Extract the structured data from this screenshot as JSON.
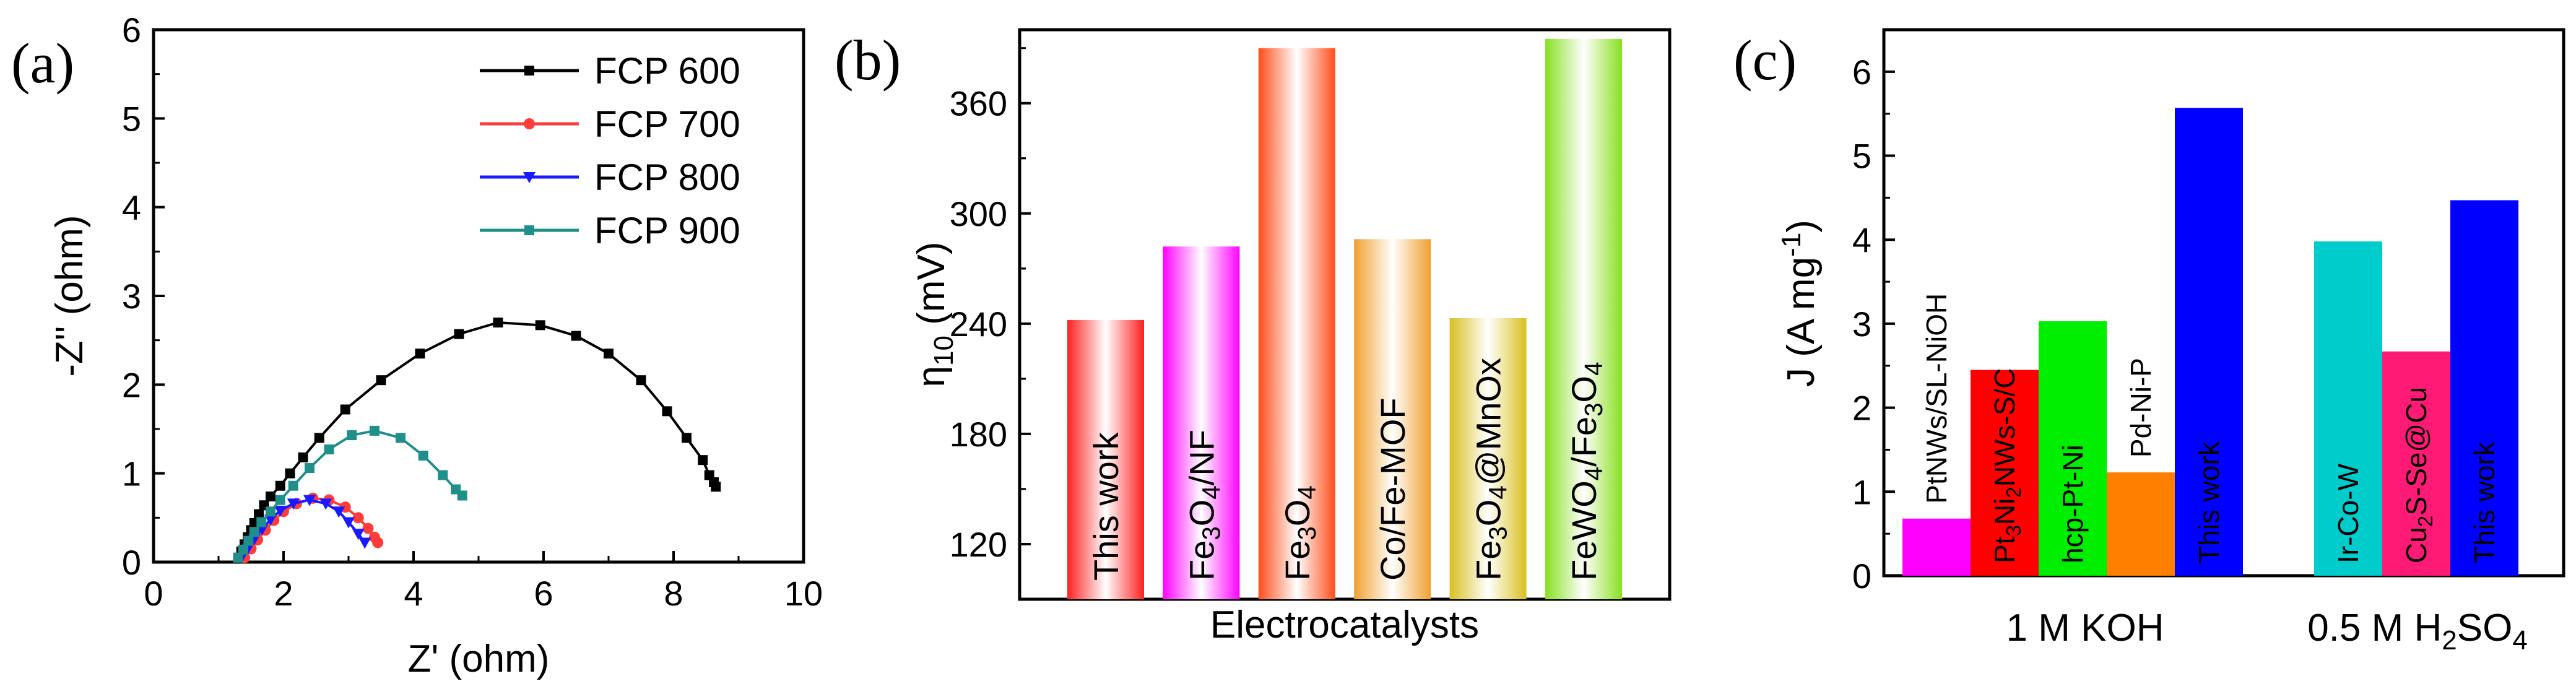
{
  "figure_title": "",
  "colors": {
    "axis": "#000000",
    "fcp600": "#000000",
    "fcp700": "#ff3b3b",
    "fcp800": "#1a1aff",
    "fcp900": "#1f8f8a",
    "pink_magenta": "#ff00ff",
    "red": "#ff0000",
    "green": "#00ee00",
    "orange": "#ff8000",
    "blue": "#0000ff",
    "cyan": "#00cccc",
    "rose": "#ff1a75"
  },
  "chart_data": [
    {
      "panel_label": "(a)",
      "type": "scatter",
      "xlabel": "Z' (ohm)",
      "ylabel": "-Z'' (ohm)",
      "xlim": [
        0,
        10
      ],
      "ylim": [
        0,
        6
      ],
      "xticks": [
        0,
        2,
        4,
        6,
        8,
        10
      ],
      "yticks": [
        0,
        1,
        2,
        3,
        4,
        5,
        6
      ],
      "legend_position": "top-right",
      "series": [
        {
          "name": "FCP 600",
          "color": "#000000",
          "marker": "square",
          "x": [
            1.3,
            1.35,
            1.4,
            1.45,
            1.5,
            1.55,
            1.62,
            1.7,
            1.8,
            1.95,
            2.1,
            2.3,
            2.55,
            2.95,
            3.5,
            4.1,
            4.7,
            5.3,
            5.95,
            6.5,
            7.0,
            7.5,
            7.9,
            8.2,
            8.45,
            8.55,
            8.62,
            8.65
          ],
          "y": [
            0.05,
            0.12,
            0.2,
            0.28,
            0.36,
            0.44,
            0.54,
            0.64,
            0.74,
            0.86,
            1.0,
            1.18,
            1.4,
            1.72,
            2.05,
            2.35,
            2.57,
            2.7,
            2.67,
            2.55,
            2.35,
            2.05,
            1.7,
            1.4,
            1.15,
            0.98,
            0.9,
            0.85
          ]
        },
        {
          "name": "FCP 700",
          "color": "#ff3b3b",
          "marker": "circle",
          "x": [
            1.4,
            1.5,
            1.6,
            1.72,
            1.85,
            2.0,
            2.2,
            2.45,
            2.7,
            2.95,
            3.15,
            3.3,
            3.4,
            3.45
          ],
          "y": [
            0.05,
            0.15,
            0.25,
            0.36,
            0.47,
            0.57,
            0.66,
            0.72,
            0.7,
            0.62,
            0.5,
            0.38,
            0.28,
            0.22
          ]
        },
        {
          "name": "FCP 800",
          "color": "#1a1aff",
          "marker": "triangle-down",
          "x": [
            1.35,
            1.45,
            1.55,
            1.67,
            1.8,
            1.95,
            2.15,
            2.4,
            2.65,
            2.85,
            3.0,
            3.15,
            3.25
          ],
          "y": [
            0.05,
            0.15,
            0.26,
            0.37,
            0.48,
            0.58,
            0.66,
            0.7,
            0.66,
            0.57,
            0.45,
            0.32,
            0.22
          ]
        },
        {
          "name": "FCP 900",
          "color": "#1f8f8a",
          "marker": "square",
          "x": [
            1.3,
            1.38,
            1.46,
            1.55,
            1.66,
            1.8,
            1.95,
            2.15,
            2.4,
            2.7,
            3.05,
            3.4,
            3.8,
            4.15,
            4.45,
            4.65,
            4.75
          ],
          "y": [
            0.05,
            0.14,
            0.24,
            0.34,
            0.45,
            0.57,
            0.7,
            0.86,
            1.06,
            1.27,
            1.43,
            1.48,
            1.4,
            1.2,
            0.98,
            0.82,
            0.75
          ]
        }
      ]
    },
    {
      "panel_label": "(b)",
      "type": "bar",
      "xlabel": "Electrocatalysts",
      "ylabel_main": "η",
      "ylabel_sub": "10",
      "ylabel_unit": " (mV)",
      "ylim": [
        90,
        400
      ],
      "yticks": [
        120,
        180,
        240,
        300,
        360
      ],
      "bars": [
        {
          "label": "This work",
          "value": 242,
          "color": "#ff2020"
        },
        {
          "label": "Fe3O4/NF",
          "value": 282,
          "color": "#ff00ff"
        },
        {
          "label": "Fe3O4",
          "value": 390,
          "color": "#ff4d1a"
        },
        {
          "label": "Co/Fe-MOF",
          "value": 286,
          "color": "#f0a030"
        },
        {
          "label": "Fe3O4@MnOx",
          "value": 243,
          "color": "#d9c020"
        },
        {
          "label": "FeWO4/Fe3O4",
          "value": 395,
          "color": "#88e020"
        }
      ]
    },
    {
      "panel_label": "(c)",
      "type": "bar",
      "ylabel_main": "J (A mg",
      "ylabel_sup": "-1",
      "ylabel_tail": ")",
      "ylim": [
        0,
        6.5
      ],
      "yticks": [
        0,
        1,
        2,
        3,
        4,
        5,
        6
      ],
      "groups": [
        {
          "label": "1 M KOH",
          "label_main": "1 M KOH",
          "label_sub": "",
          "label_tail": "",
          "bars": [
            {
              "label": "PtNWs/SL-NiOH",
              "value": 0.68,
              "color": "#ff00ff"
            },
            {
              "label": "Pt3Ni2NWs-S/C",
              "value": 2.45,
              "color": "#ff0000"
            },
            {
              "label": "hcp-Pt-Ni",
              "value": 3.03,
              "color": "#00ee00"
            },
            {
              "label": "Pd-Ni-P",
              "value": 1.23,
              "color": "#ff8000"
            },
            {
              "label": "This work",
              "value": 5.57,
              "color": "#0000ff"
            }
          ]
        },
        {
          "label": "0.5 M H2SO4",
          "label_main": "0.5 M H",
          "label_sub": "2",
          "label_tail": "SO",
          "label_sub2": "4",
          "bars": [
            {
              "label": "Ir-Co-W",
              "value": 3.98,
              "color": "#00cccc"
            },
            {
              "label": "Cu2S-Se@Cu",
              "value": 2.67,
              "color": "#ff1a75"
            },
            {
              "label": "This work",
              "value": 4.47,
              "color": "#0000ff"
            }
          ]
        }
      ]
    }
  ]
}
